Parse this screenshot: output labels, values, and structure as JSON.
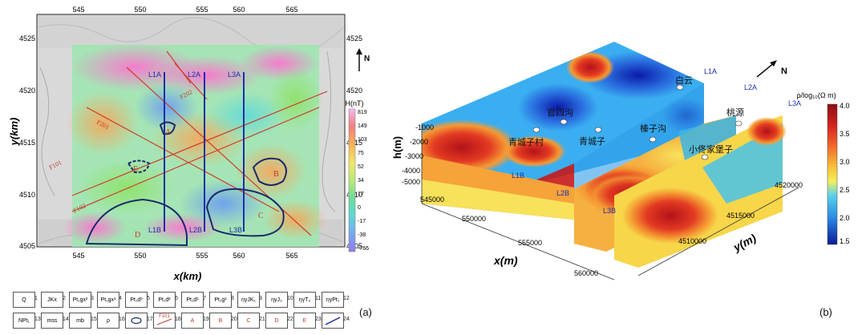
{
  "panel_a": {
    "label": "(a)",
    "x_axis_title": "x(km)",
    "y_axis_title": "y(km)",
    "x_ticks": [
      "545",
      "550",
      "555",
      "560",
      "565"
    ],
    "y_ticks": [
      "4525",
      "4520",
      "4515",
      "4510",
      "4505"
    ],
    "north_label": "N",
    "colorbar": {
      "title": "H(nT)",
      "ticks": [
        "819",
        "149",
        "103",
        "75",
        "52",
        "34",
        "17",
        "0",
        "-17",
        "-38",
        "-766"
      ]
    },
    "line_labels_top": [
      "L1A",
      "L2A",
      "L3A"
    ],
    "line_labels_bottom": [
      "L1B",
      "L2B",
      "L3B"
    ],
    "fault_labels": [
      "F101",
      "F102",
      "F201",
      "F202"
    ],
    "zone_labels": [
      "A",
      "B",
      "C",
      "D",
      "E"
    ],
    "legend": {
      "items": [
        {
          "label": "Q",
          "num": "1"
        },
        {
          "label": "JKx",
          "num": "2"
        },
        {
          "label": "Pt₁gx²",
          "num": "3"
        },
        {
          "label": "Pt₁gx¹",
          "num": "4"
        },
        {
          "label": "Pt₁d³",
          "num": "5"
        },
        {
          "label": "Pt₁d²",
          "num": "6"
        },
        {
          "label": "Pt₁d¹",
          "num": "7"
        },
        {
          "label": "Pt₁g¹",
          "num": "8"
        },
        {
          "label": "ηγJK₁",
          "num": "9"
        },
        {
          "label": "ηγJ₃",
          "num": "10"
        },
        {
          "label": "ηγT₃",
          "num": "11"
        },
        {
          "label": "ηγPt₁",
          "num": "12"
        },
        {
          "label": "NPt₁",
          "num": "13"
        },
        {
          "label": "mss",
          "num": "14"
        },
        {
          "label": "mb",
          "num": "15"
        },
        {
          "label": "ρ",
          "num": "16"
        },
        {
          "label": "",
          "num": "17"
        },
        {
          "label": "F101",
          "num": "18"
        },
        {
          "label": "A",
          "num": "19"
        },
        {
          "label": "B",
          "num": "20"
        },
        {
          "label": "C",
          "num": "21"
        },
        {
          "label": "D",
          "num": "22"
        },
        {
          "label": "E",
          "num": "23"
        },
        {
          "label": "",
          "num": "24"
        }
      ]
    }
  },
  "panel_b": {
    "label": "(b)",
    "x_axis_title": "x(m)",
    "y_axis_title": "y(m)",
    "z_axis_title": "h(m)",
    "x_ticks": [
      "545000",
      "550000",
      "555000",
      "560000"
    ],
    "y_ticks": [
      "4510000",
      "4515000",
      "4520000"
    ],
    "z_ticks": [
      "-1000",
      "-2000",
      "-3000",
      "-4000",
      "-5000"
    ],
    "north_label": "N",
    "colorbar": {
      "title": "ρ/log₁₀(Ω m)",
      "ticks": [
        "4.0",
        "3.5",
        "3.0",
        "2.5",
        "2.0",
        "1.5"
      ]
    },
    "line_labels": [
      "L1A",
      "L2A",
      "L3A",
      "L1B",
      "L2B",
      "L3B"
    ],
    "places": [
      "白云",
      "官四沟",
      "青城子村",
      "青城子",
      "榛子沟",
      "桃源",
      "小佟家堡子"
    ]
  }
}
